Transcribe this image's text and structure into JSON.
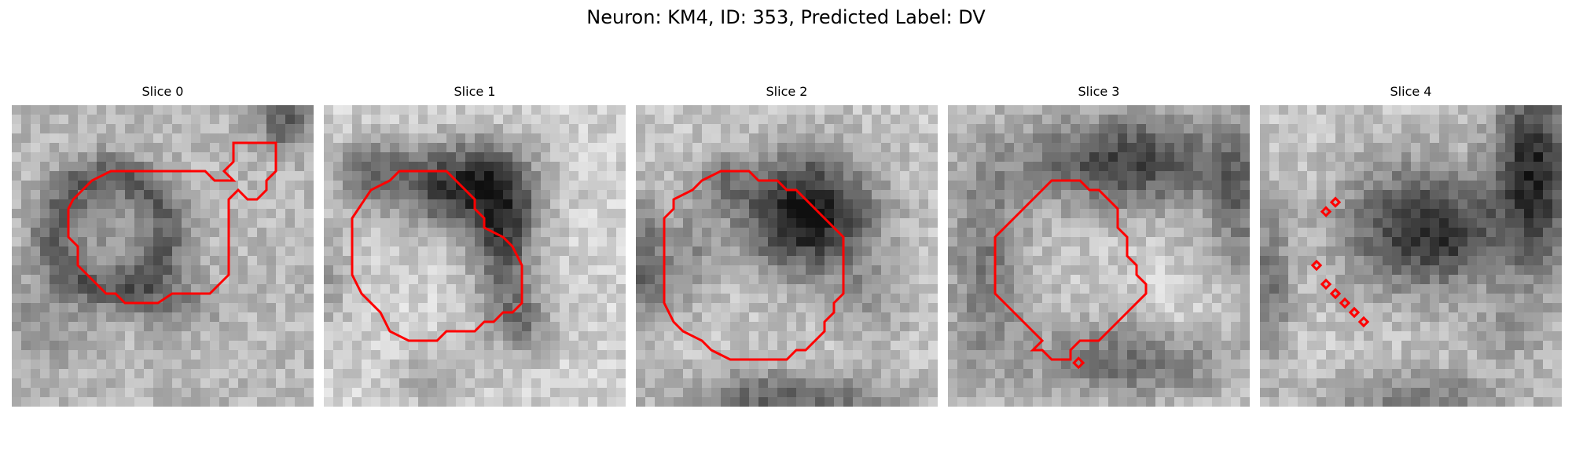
{
  "figure": {
    "title": "Neuron: KM4, ID: 353, Predicted Label: DV",
    "neuron": "KM4",
    "id": 353,
    "predicted_label": "DV",
    "contour_color": "#ff0000"
  },
  "panels": [
    {
      "title": "Slice 0",
      "pattern": "ring"
    },
    {
      "title": "Slice 1",
      "pattern": "crescent"
    },
    {
      "title": "Slice 2",
      "pattern": "cap"
    },
    {
      "title": "Slice 3",
      "pattern": "blobs"
    },
    {
      "title": "Slice 4",
      "pattern": "dark-right"
    }
  ]
}
